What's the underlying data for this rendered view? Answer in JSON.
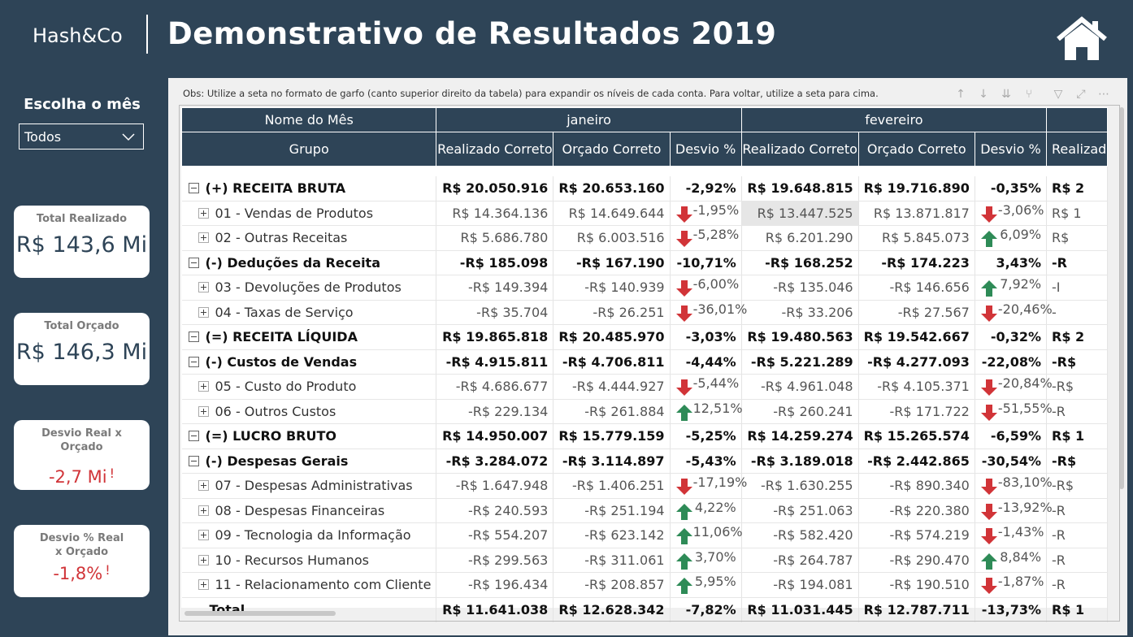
{
  "header": {
    "logo": "Hash&Co",
    "title": "Demonstrativo de Resultados 2019"
  },
  "sidebar": {
    "choose_label": "Escolha o mês",
    "month_select": "Todos",
    "cards": [
      {
        "title": "Total Realizado",
        "value": "R$ 143,6 Mi"
      },
      {
        "title": "Total Orçado",
        "value": "R$ 146,3 Mi"
      },
      {
        "title": "Desvio Real x Orçado",
        "value": "-2,7 Mi",
        "flag": "!"
      },
      {
        "title": "Desvio % Real x Orçado",
        "value": "-1,8%",
        "flag": "!"
      }
    ]
  },
  "panel": {
    "obs": "Obs: Utilize a seta no formato de garfo (canto superior direito da tabela) para expandir os níveis de cada conta. Para voltar, utilize a seta para cima."
  },
  "table": {
    "header_month_label": "Nome do Mês",
    "header_group_label": "Grupo",
    "months": [
      "janeiro",
      "fevereiro"
    ],
    "columns": [
      "Realizado Correto",
      "Orçado Correto",
      "Desvio %",
      "Realizado Correto",
      "Orçado Correto",
      "Desvio %",
      "Realizad"
    ],
    "rows": [
      {
        "level": 1,
        "label": "(+) RECEITA BRUTA",
        "jan": [
          "R$ 20.050.916",
          "R$ 20.653.160",
          "-2,92%"
        ],
        "fev": [
          "R$ 19.648.815",
          "R$ 19.716.890",
          "-0,35%"
        ],
        "mar": "R$ 2"
      },
      {
        "level": 2,
        "label": "01 - Vendas de Produtos",
        "jan": [
          "R$ 14.364.136",
          "R$ 14.649.644",
          "-1,95%"
        ],
        "jan_arrow": "down",
        "fev": [
          "R$ 13.447.525",
          "R$ 13.871.817",
          "-3,06%"
        ],
        "fev_arrow": "down",
        "mar": "R$ 1"
      },
      {
        "level": 2,
        "label": "02 - Outras Receitas",
        "jan": [
          "R$ 5.686.780",
          "R$ 6.003.516",
          "-5,28%"
        ],
        "jan_arrow": "down",
        "fev": [
          "R$ 6.201.290",
          "R$ 5.845.073",
          "6,09%"
        ],
        "fev_arrow": "up",
        "mar": "R$"
      },
      {
        "level": 1,
        "label": "(-) Deduções da Receita",
        "jan": [
          "-R$ 185.098",
          "-R$ 167.190",
          "-10,71%"
        ],
        "fev": [
          "-R$ 168.252",
          "-R$ 174.223",
          "3,43%"
        ],
        "mar": "-R"
      },
      {
        "level": 2,
        "label": "03 - Devoluções de Produtos",
        "jan": [
          "-R$ 149.394",
          "-R$ 140.939",
          "-6,00%"
        ],
        "jan_arrow": "down",
        "fev": [
          "-R$ 135.046",
          "-R$ 146.656",
          "7,92%"
        ],
        "fev_arrow": "up",
        "mar": "-I"
      },
      {
        "level": 2,
        "label": "04 - Taxas de Serviço",
        "jan": [
          "-R$ 35.704",
          "-R$ 26.251",
          "-36,01%"
        ],
        "jan_arrow": "down",
        "fev": [
          "-R$ 33.206",
          "-R$ 27.567",
          "-20,46%"
        ],
        "fev_arrow": "down",
        "mar": "-"
      },
      {
        "level": 1,
        "label": "(=) RECEITA LÍQUIDA",
        "jan": [
          "R$ 19.865.818",
          "R$ 20.485.970",
          "-3,03%"
        ],
        "fev": [
          "R$ 19.480.563",
          "R$ 19.542.667",
          "-0,32%"
        ],
        "mar": "R$ 2"
      },
      {
        "level": 1,
        "label": "(-) Custos de Vendas",
        "jan": [
          "-R$ 4.915.811",
          "-R$ 4.706.811",
          "-4,44%"
        ],
        "fev": [
          "-R$ 5.221.289",
          "-R$ 4.277.093",
          "-22,08%"
        ],
        "mar": "-R$"
      },
      {
        "level": 2,
        "label": "05 - Custo do Produto",
        "jan": [
          "-R$ 4.686.677",
          "-R$ 4.444.927",
          "-5,44%"
        ],
        "jan_arrow": "down",
        "fev": [
          "-R$ 4.961.048",
          "-R$ 4.105.371",
          "-20,84%"
        ],
        "fev_arrow": "down",
        "mar": "-R$"
      },
      {
        "level": 2,
        "label": "06 - Outros Custos",
        "jan": [
          "-R$ 229.134",
          "-R$ 261.884",
          "12,51%"
        ],
        "jan_arrow": "up",
        "fev": [
          "-R$ 260.241",
          "-R$ 171.722",
          "-51,55%"
        ],
        "fev_arrow": "down",
        "mar": "-R"
      },
      {
        "level": 1,
        "label": "(=) LUCRO BRUTO",
        "jan": [
          "R$ 14.950.007",
          "R$ 15.779.159",
          "-5,25%"
        ],
        "fev": [
          "R$ 14.259.274",
          "R$ 15.265.574",
          "-6,59%"
        ],
        "mar": "R$ 1"
      },
      {
        "level": 1,
        "label": "(-) Despesas Gerais",
        "jan": [
          "-R$ 3.284.072",
          "-R$ 3.114.897",
          "-5,43%"
        ],
        "fev": [
          "-R$ 3.189.018",
          "-R$ 2.442.865",
          "-30,54%"
        ],
        "mar": "-R$"
      },
      {
        "level": 2,
        "label": "07 - Despesas Administrativas",
        "jan": [
          "-R$ 1.647.948",
          "-R$ 1.406.251",
          "-17,19%"
        ],
        "jan_arrow": "down",
        "fev": [
          "-R$ 1.630.255",
          "-R$ 890.340",
          "-83,10%"
        ],
        "fev_arrow": "down",
        "mar": "-R$"
      },
      {
        "level": 2,
        "label": "08 - Despesas Financeiras",
        "jan": [
          "-R$ 240.593",
          "-R$ 251.194",
          "4,22%"
        ],
        "jan_arrow": "up",
        "fev": [
          "-R$ 251.063",
          "-R$ 220.380",
          "-13,92%"
        ],
        "fev_arrow": "down",
        "mar": "-R"
      },
      {
        "level": 2,
        "label": "09 - Tecnologia da Informação",
        "jan": [
          "-R$ 554.207",
          "-R$ 623.142",
          "11,06%"
        ],
        "jan_arrow": "up",
        "fev": [
          "-R$ 582.420",
          "-R$ 574.219",
          "-1,43%"
        ],
        "fev_arrow": "down",
        "mar": "-R"
      },
      {
        "level": 2,
        "label": "10 - Recursos Humanos",
        "jan": [
          "-R$ 299.563",
          "-R$ 311.061",
          "3,70%"
        ],
        "jan_arrow": "up",
        "fev": [
          "-R$ 264.787",
          "-R$ 290.470",
          "8,84%"
        ],
        "fev_arrow": "up",
        "mar": "-R"
      },
      {
        "level": 2,
        "label": "11 - Relacionamento com Cliente",
        "jan": [
          "-R$ 196.434",
          "-R$ 208.857",
          "5,95%"
        ],
        "jan_arrow": "up",
        "fev": [
          "-R$ 194.081",
          "-R$ 190.510",
          "-1,87%"
        ],
        "fev_arrow": "down",
        "mar": "-R"
      }
    ],
    "total": {
      "label": "Total",
      "jan": [
        "R$ 11.641.038",
        "R$ 12.628.342",
        "-7,82%"
      ],
      "fev": [
        "R$ 11.031.445",
        "R$ 12.787.711",
        "-13,73%"
      ],
      "mar": "R$ 1"
    },
    "highlighted_cell": "R$ 13.447.525"
  },
  "colors": {
    "background": "#2e4457",
    "header_bg": "#2e4457",
    "arrow_up": "#2e8b57",
    "arrow_down": "#d13438",
    "negative_kpi": "#d13438"
  },
  "icons": [
    "home-icon",
    "chevron-down-icon",
    "arrow-up-icon",
    "arrow-down-icon",
    "drill-up-icon",
    "drill-down-icon",
    "expand-all-icon",
    "fork-expand-icon",
    "filter-icon",
    "focus-mode-icon",
    "more-options-icon"
  ]
}
